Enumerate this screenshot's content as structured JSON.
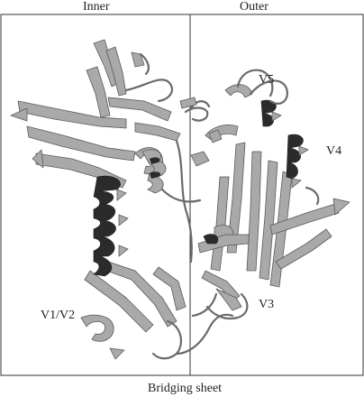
{
  "headers": {
    "inner": "Inner",
    "outer": "Outer"
  },
  "footer": "Bridging sheet",
  "region_labels": {
    "v1v2": "V1/V2",
    "v3": "V3",
    "v4": "V4",
    "v5": "V5"
  },
  "colors": {
    "ribbon": "#a9a9a9",
    "ribbon_edge": "#5a5a5a",
    "helix_dark": "#2b2b2b",
    "frame": "#333333"
  }
}
